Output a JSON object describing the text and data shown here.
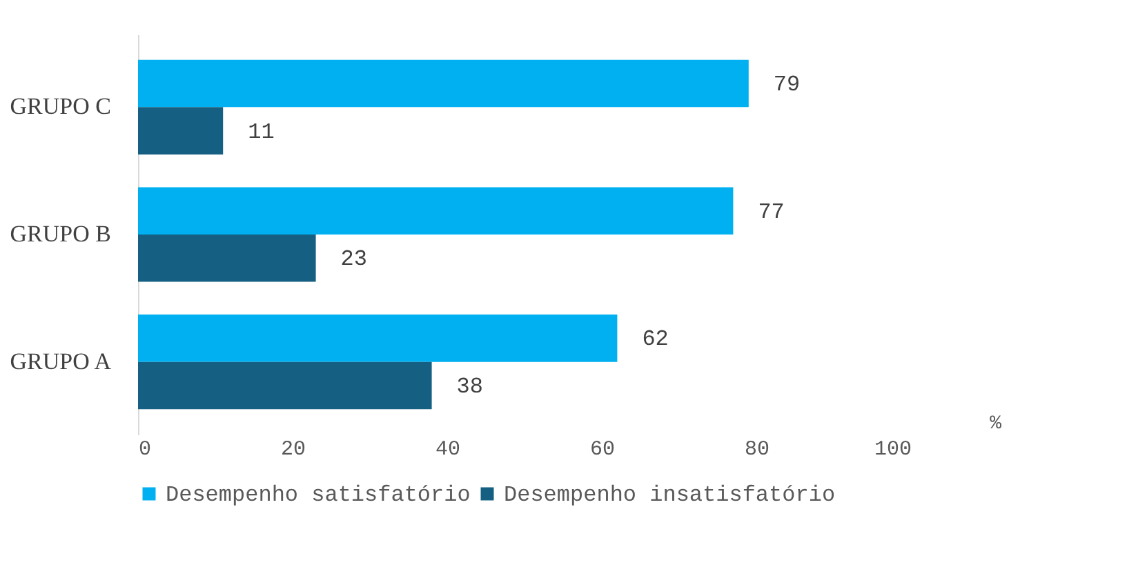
{
  "chart_data": {
    "type": "bar",
    "orientation": "horizontal",
    "categories": [
      "GRUPO C",
      "GRUPO B",
      "GRUPO A"
    ],
    "series": [
      {
        "name": "Desempenho satisfatório",
        "color": "#00b0f0",
        "values": [
          79,
          77,
          62
        ]
      },
      {
        "name": "Desempenho insatisfatório",
        "color": "#156082",
        "values": [
          11,
          23,
          38
        ]
      }
    ],
    "xlabel": "%",
    "xlim": [
      0,
      100
    ],
    "xticks": [
      0,
      20,
      40,
      60,
      80,
      100
    ],
    "grid": false,
    "legend": "bottom",
    "data_labels": true
  }
}
